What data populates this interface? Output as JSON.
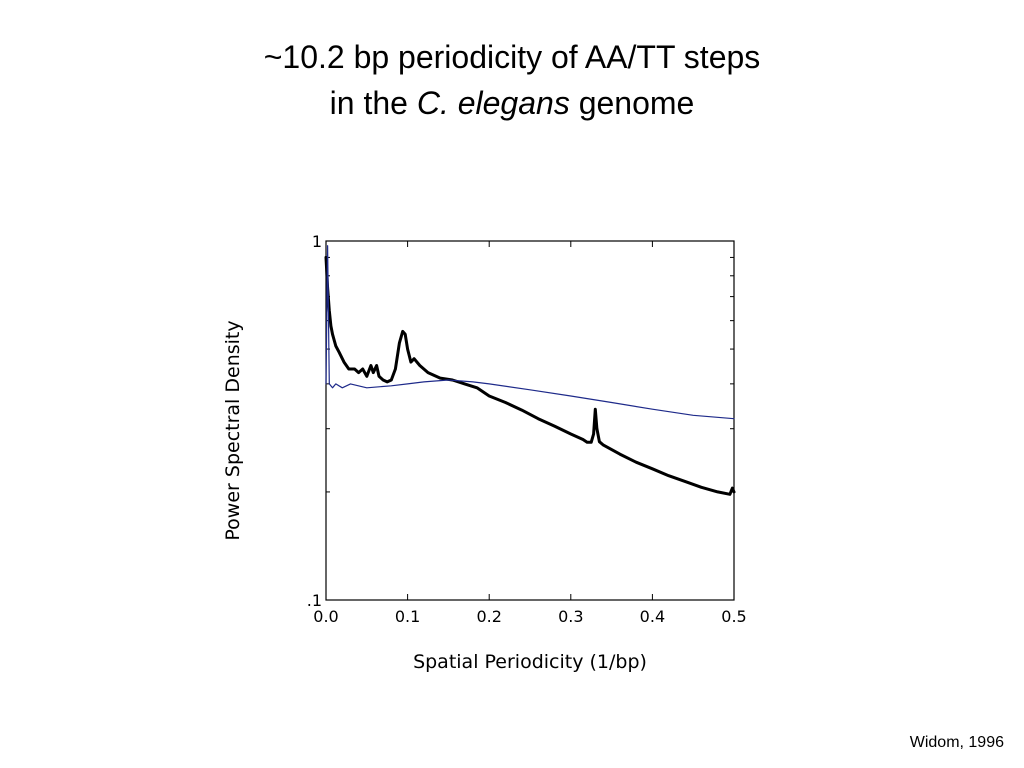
{
  "slide": {
    "title_line1": "~10.2 bp periodicity of AA/TT steps",
    "title_line2_prefix": "in the ",
    "title_line2_italic": "C. elegans",
    "title_line2_suffix": " genome",
    "citation": "Widom, 1996"
  },
  "chart_data": {
    "type": "line",
    "xlabel": "Spatial Periodicity  (1/bp)",
    "ylabel": "Power Spectral Density",
    "xlim": [
      0.0,
      0.5
    ],
    "ylim": [
      0.1,
      1
    ],
    "yscale": "log",
    "grid": false,
    "x_ticks": [
      0.0,
      0.1,
      0.2,
      0.3,
      0.4,
      0.5
    ],
    "x_tick_labels": [
      "0.0",
      "0.1",
      "0.2",
      "0.3",
      "0.4",
      "0.5"
    ],
    "y_ticks": [
      0.1,
      1
    ],
    "y_tick_labels": [
      ".1",
      "1"
    ],
    "series": [
      {
        "color": "#000000",
        "width": 3,
        "x": [
          0.0,
          0.002,
          0.004,
          0.006,
          0.008,
          0.012,
          0.016,
          0.022,
          0.028,
          0.035,
          0.04,
          0.045,
          0.05,
          0.055,
          0.058,
          0.062,
          0.065,
          0.07,
          0.075,
          0.08,
          0.085,
          0.09,
          0.094,
          0.097,
          0.1,
          0.104,
          0.108,
          0.115,
          0.125,
          0.14,
          0.155,
          0.17,
          0.185,
          0.2,
          0.22,
          0.24,
          0.26,
          0.28,
          0.3,
          0.315,
          0.32,
          0.325,
          0.328,
          0.33,
          0.332,
          0.335,
          0.34,
          0.36,
          0.38,
          0.4,
          0.42,
          0.44,
          0.46,
          0.48,
          0.495,
          0.498,
          0.5
        ],
        "y": [
          0.9,
          0.74,
          0.64,
          0.58,
          0.55,
          0.51,
          0.49,
          0.46,
          0.44,
          0.44,
          0.43,
          0.44,
          0.42,
          0.45,
          0.43,
          0.45,
          0.42,
          0.41,
          0.405,
          0.41,
          0.44,
          0.52,
          0.56,
          0.55,
          0.5,
          0.46,
          0.47,
          0.45,
          0.43,
          0.415,
          0.41,
          0.4,
          0.39,
          0.37,
          0.355,
          0.338,
          0.32,
          0.305,
          0.29,
          0.28,
          0.275,
          0.275,
          0.29,
          0.34,
          0.3,
          0.276,
          0.27,
          0.255,
          0.242,
          0.232,
          0.222,
          0.214,
          0.206,
          0.2,
          0.197,
          0.205,
          0.2
        ]
      },
      {
        "color": "#1e2a8a",
        "width": 1.2,
        "x": [
          0.0,
          0.002,
          0.004,
          0.008,
          0.012,
          0.02,
          0.03,
          0.05,
          0.08,
          0.1,
          0.12,
          0.15,
          0.18,
          0.2,
          0.25,
          0.3,
          0.35,
          0.4,
          0.45,
          0.5
        ],
        "y": [
          0.4,
          0.97,
          0.4,
          0.39,
          0.4,
          0.39,
          0.4,
          0.39,
          0.395,
          0.4,
          0.405,
          0.41,
          0.405,
          0.4,
          0.385,
          0.37,
          0.355,
          0.34,
          0.327,
          0.32
        ]
      }
    ]
  }
}
